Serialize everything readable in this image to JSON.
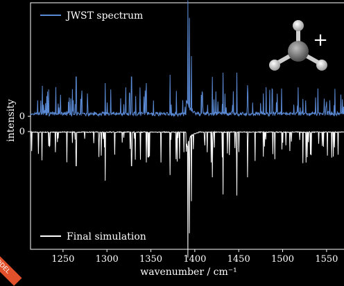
{
  "chart_data": {
    "type": "line",
    "xlabel": "wavenumber / cm⁻¹",
    "ylabel": "intensity",
    "xlim": [
      1213,
      1573
    ],
    "x_ticks": [
      1250,
      1300,
      1350,
      1400,
      1450,
      1500,
      1550
    ],
    "y_ticks": [
      "0",
      "0"
    ],
    "grid": false,
    "legend_placement": "top-left",
    "series": [
      {
        "name": "JWST spectrum",
        "color": "#5b8bd6",
        "baseline": 0,
        "strong_lines": [
          {
            "x": 1392,
            "y": 1.0
          },
          {
            "x": 1394,
            "y": 0.88
          },
          {
            "x": 1396,
            "y": 0.55
          },
          {
            "x": 1265,
            "y": 0.38
          },
          {
            "x": 1298,
            "y": 0.32
          },
          {
            "x": 1328,
            "y": 0.38
          },
          {
            "x": 1345,
            "y": 0.32
          },
          {
            "x": 1372,
            "y": 0.4
          },
          {
            "x": 1420,
            "y": 0.38
          },
          {
            "x": 1432,
            "y": 0.42
          },
          {
            "x": 1448,
            "y": 0.42
          },
          {
            "x": 1460,
            "y": 0.3
          },
          {
            "x": 1478,
            "y": 0.22
          }
        ]
      },
      {
        "name": "Final simulation",
        "color": "#ffffff",
        "baseline": 0,
        "strong_lines": [
          {
            "x": 1392,
            "y": -1.0
          },
          {
            "x": 1394,
            "y": -0.84
          },
          {
            "x": 1396,
            "y": -0.58
          },
          {
            "x": 1265,
            "y": -0.3
          },
          {
            "x": 1298,
            "y": -0.43
          },
          {
            "x": 1328,
            "y": -0.3
          },
          {
            "x": 1345,
            "y": -0.27
          },
          {
            "x": 1372,
            "y": -0.38
          },
          {
            "x": 1420,
            "y": -0.4
          },
          {
            "x": 1432,
            "y": -0.55
          },
          {
            "x": 1448,
            "y": -0.56
          },
          {
            "x": 1460,
            "y": -0.4
          },
          {
            "x": 1478,
            "y": -0.22
          }
        ]
      }
    ],
    "molecule_inset": {
      "icon": "methyl-cation-molecule",
      "charge_label": "+"
    },
    "corner_badge": "MODEL"
  }
}
